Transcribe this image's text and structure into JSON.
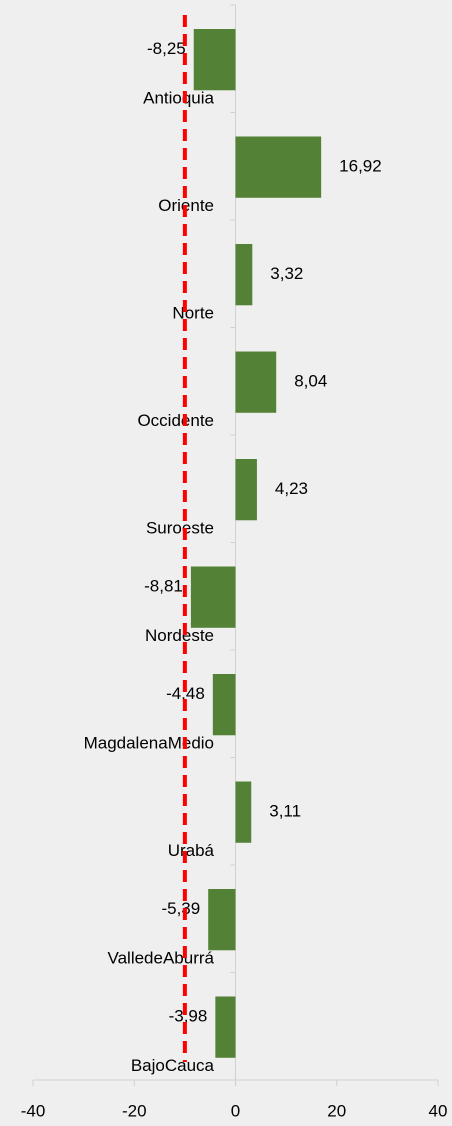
{
  "chart_data": {
    "type": "bar",
    "orientation": "horizontal",
    "categories": [
      "Antioquia",
      "Oriente",
      "Norte",
      "Occidente",
      "Suroeste",
      "Nordeste",
      "MagdalenaMedio",
      "Urabá",
      "ValledeAburrá",
      "BajoCauca"
    ],
    "values": [
      -8.25,
      16.92,
      3.32,
      8.04,
      4.23,
      -8.81,
      -4.48,
      3.11,
      -5.39,
      -3.98
    ],
    "value_labels": [
      "-8,25",
      "16,92",
      "3,32",
      "8,04",
      "4,23",
      "-8,81",
      "-4,48",
      "3,11",
      "-5,39",
      "-3,98"
    ],
    "color": "#538135",
    "xlim": [
      -40,
      40
    ],
    "xticks": [
      -40,
      -20,
      0,
      20,
      40
    ],
    "reference_line": {
      "value": -10,
      "color": "#ff0000"
    }
  }
}
